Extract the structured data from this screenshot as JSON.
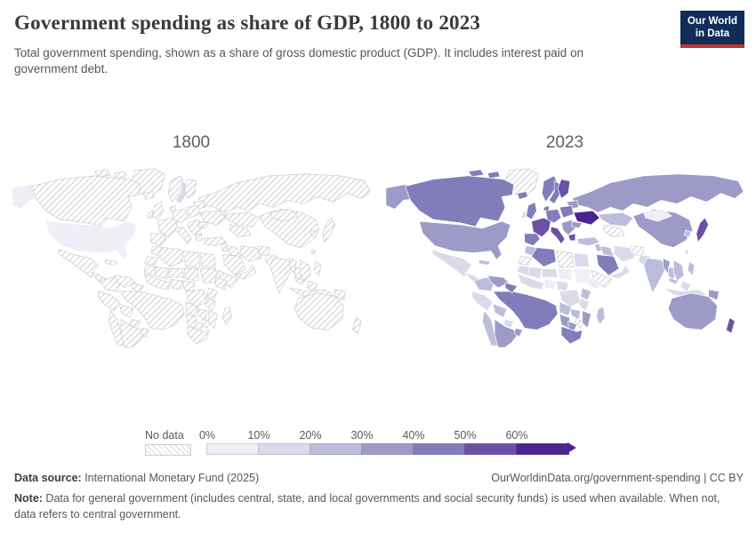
{
  "header": {
    "title": "Government spending as share of GDP, 1800 to 2023",
    "subtitle": "Total government spending, shown as a share of gross domestic product (GDP). It includes interest paid on government debt.",
    "logo": {
      "line1": "Our World",
      "line2": "in Data",
      "bg": "#102d59",
      "accent": "#c5342b"
    }
  },
  "maps": {
    "left_label": "1800",
    "right_label": "2023"
  },
  "legend": {
    "no_data_label": "No data",
    "tick_labels": [
      "0%",
      "10%",
      "20%",
      "30%",
      "40%",
      "50%",
      "60%"
    ],
    "colors": [
      "#efedf5",
      "#dadaeb",
      "#bcbddc",
      "#9e9ac8",
      "#807dba",
      "#6a51a3",
      "#4c248f"
    ]
  },
  "footer": {
    "source_label": "Data source:",
    "source_text": " International Monetary Fund (2025)",
    "rights": "OurWorldinData.org/government-spending | CC BY",
    "note_label": "Note:",
    "note_text": " Data for general government (includes central, state, and local governments and social security funds) is used when available. When not, data refers to central government."
  },
  "chart_data": {
    "type": "choropleth",
    "title": "Government spending as share of GDP, 1800 to 2023",
    "unit": "% of GDP",
    "bins": [
      "0-10",
      "10-20",
      "20-30",
      "30-40",
      "40-50",
      "50-60",
      "60+",
      "no-data"
    ],
    "band_colors": {
      "0-10": "#efedf5",
      "10-20": "#dadaeb",
      "20-30": "#bcbddc",
      "30-40": "#9e9ac8",
      "40-50": "#807dba",
      "50-60": "#6a51a3",
      "60+": "#4c248f",
      "no-data": "hatch"
    },
    "maps": {
      "m1800": {
        "year": "1800",
        "default": "no-data",
        "regions": {
          "usa": "0-10",
          "alaska": "0-10",
          "sweden": "10-20"
        }
      },
      "m2023": {
        "year": "2023",
        "default": "no-data",
        "regions": {
          "alaska": "30-40",
          "canada": "40-50",
          "usa": "30-40",
          "greenland": "no-data",
          "mexico": "10-20",
          "centralamerica": "10-20",
          "cuba": "20-30",
          "colombia": "20-30",
          "venezuela": "30-40",
          "guyanas": "40-50",
          "peru": "10-20",
          "brazil": "40-50",
          "bolivia": "20-30",
          "paraguay": "10-20",
          "chile": "20-30",
          "argentina": "30-40",
          "uruguay": "30-40",
          "iceland": "40-50",
          "uk": "40-50",
          "ireland": "10-20",
          "norway": "40-50",
          "sweden": "40-50",
          "finland": "50-60",
          "denmark": "40-50",
          "germany": "40-50",
          "france": "50-60",
          "iberia": "40-50",
          "italy": "50-60",
          "polandbaltic": "40-50",
          "balkans": "30-40",
          "greece": "50-60",
          "belarusbaltics": "30-40",
          "ukraine": "60+",
          "romania": "30-40",
          "russia": "30-40",
          "kazakhstan": "20-30",
          "centralasia": "no-data",
          "turkey": "20-30",
          "levant": "20-30",
          "iraq": "20-30",
          "iran": "10-20",
          "afghanistan": "no-data",
          "pakistan": "10-20",
          "saudi": "40-50",
          "yemenoman": "10-20",
          "india": "20-30",
          "china": "30-40",
          "mongolia": "0-10",
          "skorea": "20-30",
          "japan": "50-60",
          "taiwan": "10-20",
          "myanmar": "30-40",
          "thailand": "20-30",
          "indochina": "20-30",
          "malaysia": "20-30",
          "indonesia": "10-20",
          "philippines": "20-30",
          "png": "30-40",
          "australia": "30-40",
          "newzealand": "50-60",
          "morocco": "20-30",
          "wsahara": "no-data",
          "algeria": "40-50",
          "libya": "no-data",
          "egypt": "10-20",
          "mauritania": "10-20",
          "mali": "10-20",
          "niger": "10-20",
          "chad": "0-10",
          "sudan": "0-10",
          "hornafrica": "no-data",
          "ethiopia": "0-10",
          "westafrica": "10-20",
          "nigeria": "0-10",
          "cameroon": "10-20",
          "drc": "10-20",
          "kenyauganda": "20-30",
          "tanzania": "10-20",
          "angola": "20-30",
          "zambia": "20-30",
          "zimbabwe": "no-data",
          "mozambique": "30-40",
          "namibia": "30-40",
          "botswana": "30-40",
          "southafrica": "40-50",
          "madagascar": "20-30"
        }
      }
    }
  }
}
